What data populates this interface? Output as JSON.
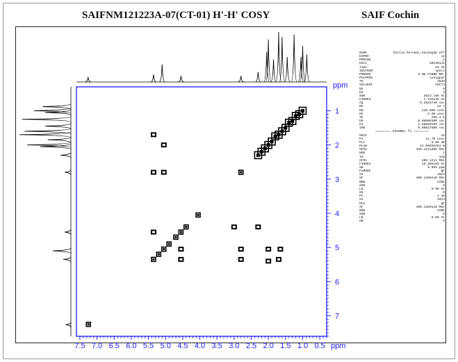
{
  "header": {
    "title": "SAIFNM121223A-07(CT-01) H'-H' COSY",
    "site": "SAIF Cochin"
  },
  "chart_data": {
    "type": "heatmap",
    "title": "SAIFNM121223A-07(CT-01) H'-H' COSY",
    "x_unit": "ppm",
    "y_unit": "ppm",
    "x_ticks": [
      7.5,
      7.0,
      6.5,
      6.0,
      5.5,
      5.0,
      4.5,
      4.0,
      3.5,
      3.0,
      2.5,
      2.0,
      1.5,
      1.0,
      0.5
    ],
    "y_ticks": [
      1,
      2,
      3,
      4,
      5,
      6,
      7
    ],
    "xlim": [
      7.6,
      0.3
    ],
    "ylim": [
      0.3,
      7.6
    ],
    "x_reversed": true,
    "grid": false,
    "diagonal_peaks": [
      {
        "x": 1.0,
        "y": 1.0
      },
      {
        "x": 1.1,
        "y": 1.1
      },
      {
        "x": 1.2,
        "y": 1.15
      },
      {
        "x": 1.3,
        "y": 1.3
      },
      {
        "x": 1.4,
        "y": 1.35
      },
      {
        "x": 1.5,
        "y": 1.5
      },
      {
        "x": 1.6,
        "y": 1.6
      },
      {
        "x": 1.7,
        "y": 1.7
      },
      {
        "x": 1.8,
        "y": 1.75
      },
      {
        "x": 1.9,
        "y": 1.9
      },
      {
        "x": 2.0,
        "y": 2.0
      },
      {
        "x": 2.1,
        "y": 2.1
      },
      {
        "x": 2.2,
        "y": 2.2
      },
      {
        "x": 2.3,
        "y": 2.3
      },
      {
        "x": 2.8,
        "y": 2.8
      },
      {
        "x": 4.05,
        "y": 4.05
      },
      {
        "x": 4.4,
        "y": 4.4
      },
      {
        "x": 4.55,
        "y": 4.55
      },
      {
        "x": 4.7,
        "y": 4.7
      },
      {
        "x": 4.9,
        "y": 4.9
      },
      {
        "x": 5.05,
        "y": 5.05
      },
      {
        "x": 5.2,
        "y": 5.2
      },
      {
        "x": 5.35,
        "y": 5.35
      },
      {
        "x": 7.25,
        "y": 7.25
      }
    ],
    "cross_peaks": [
      {
        "x": 5.35,
        "y": 1.7
      },
      {
        "x": 5.05,
        "y": 2.0
      },
      {
        "x": 5.35,
        "y": 2.8
      },
      {
        "x": 5.05,
        "y": 2.8
      },
      {
        "x": 5.35,
        "y": 4.55
      },
      {
        "x": 4.55,
        "y": 5.35
      },
      {
        "x": 4.55,
        "y": 5.05
      },
      {
        "x": 2.0,
        "y": 5.05
      },
      {
        "x": 2.3,
        "y": 4.4
      },
      {
        "x": 2.8,
        "y": 5.35
      },
      {
        "x": 1.7,
        "y": 5.35
      },
      {
        "x": 2.0,
        "y": 5.4
      },
      {
        "x": 1.65,
        "y": 5.05
      },
      {
        "x": 3.0,
        "y": 4.4
      },
      {
        "x": 2.8,
        "y": 5.05
      }
    ],
    "projection_peaks": [
      {
        "ppm": 0.88,
        "height": 0.55
      },
      {
        "ppm": 1.0,
        "height": 0.72
      },
      {
        "ppm": 1.05,
        "height": 0.5
      },
      {
        "ppm": 1.25,
        "height": 0.95
      },
      {
        "ppm": 1.45,
        "height": 0.5
      },
      {
        "ppm": 1.6,
        "height": 0.9
      },
      {
        "ppm": 1.7,
        "height": 1.0
      },
      {
        "ppm": 1.85,
        "height": 0.45
      },
      {
        "ppm": 2.0,
        "height": 0.85
      },
      {
        "ppm": 2.05,
        "height": 0.6
      },
      {
        "ppm": 2.3,
        "height": 0.2
      },
      {
        "ppm": 2.8,
        "height": 0.12
      },
      {
        "ppm": 4.55,
        "height": 0.12
      },
      {
        "ppm": 5.1,
        "height": 0.35
      },
      {
        "ppm": 5.35,
        "height": 0.15
      },
      {
        "ppm": 7.26,
        "height": 0.1
      }
    ]
  },
  "parameters": {
    "rows": [
      {
        "k": "NAME",
        "v": "Chella Perumal,Karpagam UTY"
      },
      {
        "k": "EXPNO",
        "v": "12"
      },
      {
        "k": "PROCNO",
        "v": "1"
      },
      {
        "k": "Date_",
        "v": "20130131"
      },
      {
        "k": "Time",
        "v": "16.31"
      },
      {
        "k": "INSTRUM",
        "v": "spect"
      },
      {
        "k": "PROBHD",
        "v": "5 mm PABBO BB-"
      },
      {
        "k": "PULPROG",
        "v": "cosygpqf"
      },
      {
        "k": "TD",
        "v": "2048"
      },
      {
        "k": "SOLVENT",
        "v": "CDCl3"
      },
      {
        "k": "NS",
        "v": "8"
      },
      {
        "k": "DS",
        "v": "4"
      },
      {
        "k": "SWH",
        "v": "3623.188 Hz"
      },
      {
        "k": "FIDRES",
        "v": "1.769135 Hz"
      },
      {
        "k": "AQ",
        "v": "0.2826740 sec"
      },
      {
        "k": "RG",
        "v": "12.7"
      },
      {
        "k": "DW",
        "v": "138.000 usec"
      },
      {
        "k": "DE",
        "v": "6.00 usec"
      },
      {
        "k": "TE",
        "v": "299.4 K"
      },
      {
        "k": "D0",
        "v": "0.00000300 sec"
      },
      {
        "k": "D1",
        "v": "1.98859299 sec"
      },
      {
        "k": "IN0",
        "v": "0.00027600 sec"
      }
    ],
    "channel_label": "======== CHANNEL f1 ========",
    "rows2": [
      {
        "k": "NUC1",
        "v": "1H"
      },
      {
        "k": "P1",
        "v": "12.70 usec"
      },
      {
        "k": "PL1",
        "v": "0.00 dB"
      },
      {
        "k": "PL1W",
        "v": "14.00656281 W"
      },
      {
        "k": "SFO1",
        "v": "400.1211060 MHz"
      },
      {
        "k": "ND0",
        "v": "1"
      },
      {
        "k": "TD",
        "v": "128"
      },
      {
        "k": "SFO1",
        "v": "400.1211 MHz"
      },
      {
        "k": "FIDRES",
        "v": "28.306160 Hz"
      },
      {
        "k": "SW",
        "v": "9.055 ppm"
      },
      {
        "k": "FnMODE",
        "v": "QF"
      },
      {
        "k": "SI",
        "v": "1024"
      },
      {
        "k": "SF",
        "v": "400.1200110 MHz"
      },
      {
        "k": "WDW",
        "v": "SINE"
      },
      {
        "k": "SSB",
        "v": "0"
      },
      {
        "k": "LB",
        "v": "0.00 Hz"
      },
      {
        "k": "GB",
        "v": "0"
      },
      {
        "k": "PC",
        "v": "1.40"
      },
      {
        "k": "SI",
        "v": "1024"
      },
      {
        "k": "MC2",
        "v": "QF"
      },
      {
        "k": "SF",
        "v": "400.1200110 MHz"
      },
      {
        "k": "WDW",
        "v": "SINE"
      },
      {
        "k": "SSB",
        "v": "0"
      },
      {
        "k": "LB",
        "v": "0.00 Hz"
      },
      {
        "k": "GB",
        "v": "0"
      }
    ]
  }
}
